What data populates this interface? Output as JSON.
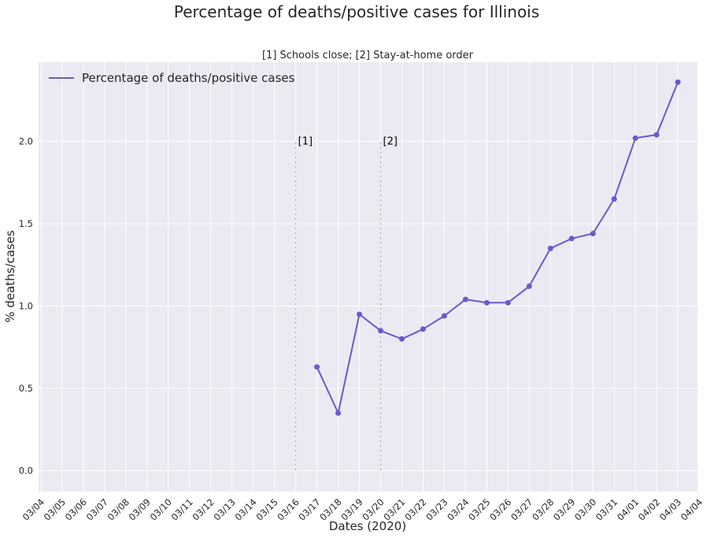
{
  "chart_data": {
    "type": "line",
    "title": "Percentage of deaths/positive cases for Illinois",
    "subtitle": "[1] Schools close; [2] Stay-at-home order",
    "xlabel": "Dates (2020)",
    "ylabel": "% deaths/cases",
    "categories": [
      "03/04",
      "03/05",
      "03/06",
      "03/07",
      "03/08",
      "03/09",
      "03/10",
      "03/11",
      "03/12",
      "03/13",
      "03/14",
      "03/15",
      "03/16",
      "03/17",
      "03/18",
      "03/19",
      "03/20",
      "03/21",
      "03/22",
      "03/23",
      "03/24",
      "03/25",
      "03/26",
      "03/27",
      "03/28",
      "03/29",
      "03/30",
      "03/31",
      "04/01",
      "04/02",
      "04/03",
      "04/04"
    ],
    "yticks": [
      "0.0",
      "0.5",
      "1.0",
      "1.5",
      "2.0"
    ],
    "ylim": [
      -0.12,
      2.48
    ],
    "grid": true,
    "legend_position": "top-left",
    "series": [
      {
        "name": "Percentage of deaths/positive cases",
        "color": "#6a5acd",
        "points": [
          {
            "x": "03/17",
            "y": 0.63
          },
          {
            "x": "03/18",
            "y": 0.35
          },
          {
            "x": "03/19",
            "y": 0.95
          },
          {
            "x": "03/20",
            "y": 0.85
          },
          {
            "x": "03/21",
            "y": 0.8
          },
          {
            "x": "03/22",
            "y": 0.86
          },
          {
            "x": "03/23",
            "y": 0.94
          },
          {
            "x": "03/24",
            "y": 1.04
          },
          {
            "x": "03/25",
            "y": 1.02
          },
          {
            "x": "03/26",
            "y": 1.02
          },
          {
            "x": "03/27",
            "y": 1.12
          },
          {
            "x": "03/28",
            "y": 1.35
          },
          {
            "x": "03/29",
            "y": 1.41
          },
          {
            "x": "03/30",
            "y": 1.44
          },
          {
            "x": "03/31",
            "y": 1.65
          },
          {
            "x": "04/01",
            "y": 2.02
          },
          {
            "x": "04/02",
            "y": 2.04
          },
          {
            "x": "04/03",
            "y": 2.36
          }
        ]
      }
    ],
    "annotations": [
      {
        "label": "[1]",
        "x": "03/16",
        "y": 2.0
      },
      {
        "label": "[2]",
        "x": "03/20",
        "y": 2.0
      }
    ],
    "colors": {
      "plot_background": "#eaeaf2",
      "grid": "#ffffff",
      "annotation_line": "#aaaaaa"
    }
  }
}
